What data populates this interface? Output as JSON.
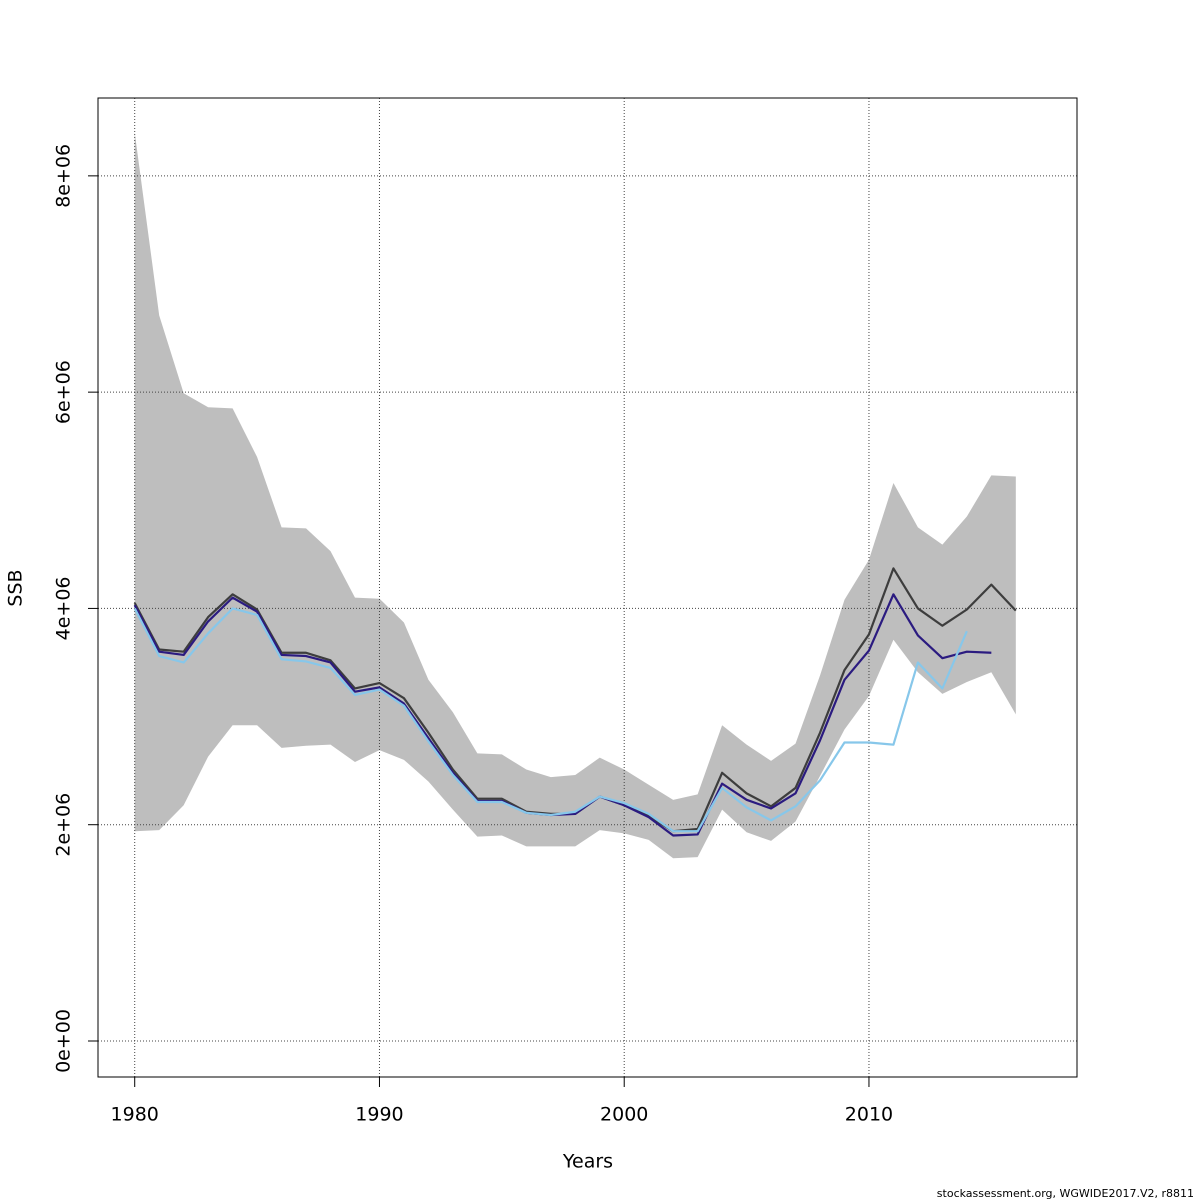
{
  "chart_data": {
    "type": "line",
    "xlabel": "Years",
    "ylabel": "SSB",
    "footer": "stockassessment.org, WGWIDE2017.V2, r8811",
    "xlim": [
      1978.5,
      2018.5
    ],
    "ylim": [
      -333000,
      8720000
    ],
    "xticks": [
      1980,
      1990,
      2000,
      2010
    ],
    "yticks": [
      {
        "value": 0,
        "label": "0e+00"
      },
      {
        "value": 2000000,
        "label": "2e+06"
      },
      {
        "value": 4000000,
        "label": "4e+06"
      },
      {
        "value": 6000000,
        "label": "6e+06"
      },
      {
        "value": 8000000,
        "label": "8e+06"
      }
    ],
    "grid": true,
    "x": [
      1980,
      1981,
      1982,
      1983,
      1984,
      1985,
      1986,
      1987,
      1988,
      1989,
      1990,
      1991,
      1992,
      1993,
      1994,
      1995,
      1996,
      1997,
      1998,
      1999,
      2000,
      2001,
      2002,
      2003,
      2004,
      2005,
      2006,
      2007,
      2008,
      2009,
      2010,
      2011,
      2012,
      2013,
      2014,
      2015,
      2016
    ],
    "band": {
      "color": "#bebebe",
      "upper": [
        8400000,
        6710000,
        5990000,
        5860000,
        5850000,
        5400000,
        4750000,
        4740000,
        4530000,
        4100000,
        4090000,
        3870000,
        3340000,
        3040000,
        2660000,
        2650000,
        2510000,
        2440000,
        2460000,
        2620000,
        2510000,
        2370000,
        2230000,
        2280000,
        2920000,
        2740000,
        2590000,
        2750000,
        3380000,
        4080000,
        4450000,
        5160000,
        4750000,
        4590000,
        4850000,
        5230000,
        5220000
      ],
      "lower": [
        1940000,
        1950000,
        2180000,
        2630000,
        2920000,
        2920000,
        2710000,
        2730000,
        2740000,
        2580000,
        2690000,
        2600000,
        2400000,
        2140000,
        1890000,
        1900000,
        1800000,
        1800000,
        1800000,
        1950000,
        1920000,
        1860000,
        1690000,
        1700000,
        2140000,
        1930000,
        1850000,
        2030000,
        2450000,
        2880000,
        3190000,
        3710000,
        3410000,
        3210000,
        3320000,
        3410000,
        3020000
      ]
    },
    "series": [
      {
        "color": "#3d3d3d",
        "values": [
          4050000,
          3620000,
          3600000,
          3920000,
          4130000,
          3990000,
          3590000,
          3590000,
          3520000,
          3260000,
          3310000,
          3170000,
          2850000,
          2510000,
          2240000,
          2240000,
          2120000,
          2100000,
          2100000,
          2260000,
          2180000,
          2080000,
          1940000,
          1960000,
          2480000,
          2290000,
          2170000,
          2340000,
          2850000,
          3430000,
          3760000,
          4370000,
          4000000,
          3840000,
          3990000,
          4220000,
          3980000
        ]
      },
      {
        "color": "#2b1b80",
        "values": [
          4030000,
          3600000,
          3570000,
          3880000,
          4100000,
          3970000,
          3570000,
          3560000,
          3500000,
          3230000,
          3270000,
          3120000,
          2800000,
          2480000,
          2220000,
          2220000,
          2110000,
          2090000,
          2100000,
          2260000,
          2180000,
          2070000,
          1900000,
          1910000,
          2380000,
          2230000,
          2150000,
          2290000,
          2780000,
          3340000,
          3610000,
          4130000,
          3750000,
          3540000,
          3600000,
          3590000,
          null
        ]
      },
      {
        "color": "#87c7ea",
        "values": [
          4000000,
          3560000,
          3500000,
          3770000,
          4000000,
          3940000,
          3530000,
          3510000,
          3450000,
          3200000,
          3250000,
          3100000,
          2770000,
          2460000,
          2210000,
          2210000,
          2110000,
          2090000,
          2120000,
          2260000,
          2200000,
          2100000,
          1940000,
          1940000,
          2340000,
          2160000,
          2040000,
          2170000,
          2410000,
          2760000,
          2760000,
          2740000,
          3500000,
          3260000,
          3790000,
          null,
          null
        ]
      }
    ]
  }
}
